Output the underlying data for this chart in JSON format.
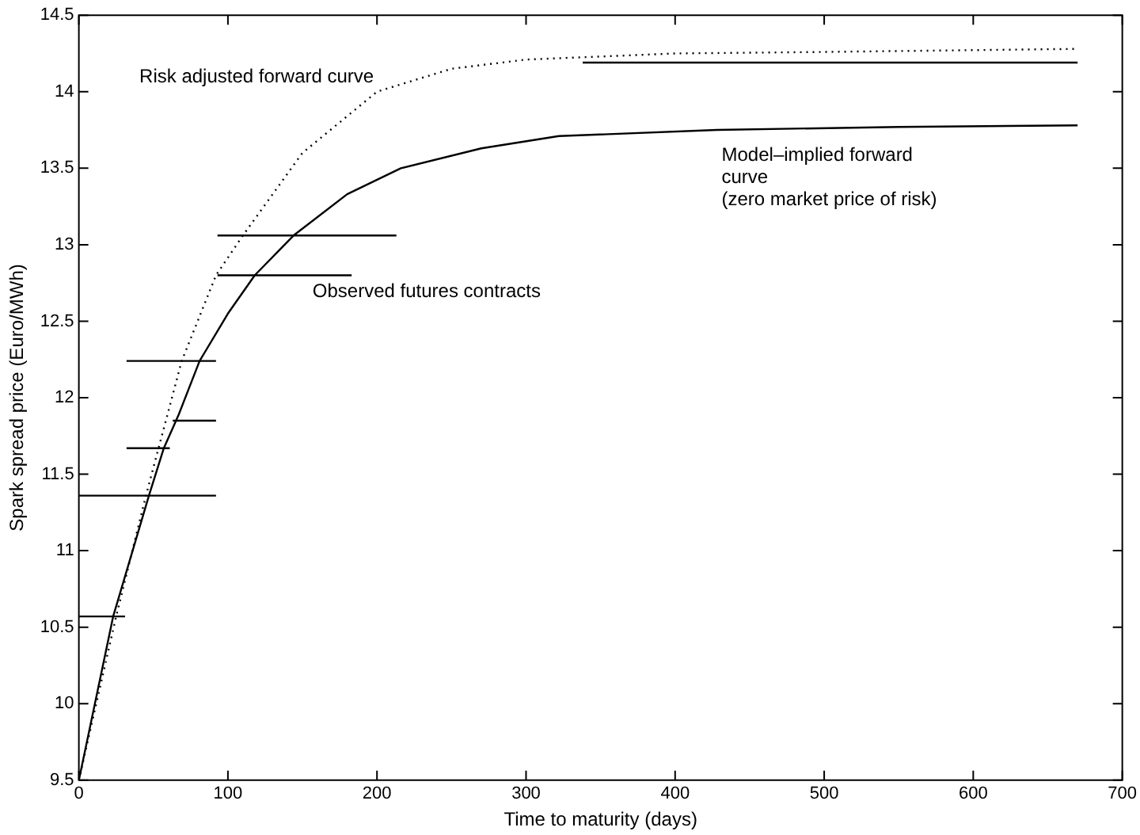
{
  "chart_data": {
    "type": "line",
    "xlabel": "Time to maturity (days)",
    "ylabel": "Spark spread price (Euro/MWh)",
    "xlim": [
      0,
      700
    ],
    "xticks": [
      0,
      100,
      200,
      300,
      400,
      500,
      600,
      700
    ],
    "ylim": [
      9.5,
      14.5
    ],
    "yticks": [
      9.5,
      10,
      10.5,
      11,
      11.5,
      12,
      12.5,
      13,
      13.5,
      14,
      14.5
    ],
    "grid": false,
    "legend": false,
    "marker": "none",
    "series": [
      {
        "color": "#000000",
        "line_style": "dotted",
        "x": [
          0,
          25,
          45,
          57,
          69,
          92,
          110,
          150,
          200,
          250,
          300,
          400,
          500,
          670
        ],
        "values": [
          9.5,
          10.57,
          11.36,
          11.8,
          12.24,
          12.8,
          13.06,
          13.6,
          14.0,
          14.15,
          14.21,
          14.25,
          14.26,
          14.28
        ]
      },
      {
        "color": "#000000",
        "line_style": "solid",
        "x": [
          0,
          23,
          47,
          57,
          67,
          81,
          100,
          118,
          144,
          180,
          216,
          270,
          322,
          428,
          550,
          670
        ],
        "values": [
          9.5,
          10.57,
          11.36,
          11.67,
          11.89,
          12.24,
          12.55,
          12.8,
          13.06,
          13.33,
          13.5,
          13.63,
          13.71,
          13.75,
          13.77,
          13.78
        ]
      },
      {
        "color": "#000000",
        "line_style": "solid",
        "x": [
          0,
          31
        ],
        "values": [
          10.57,
          10.57
        ]
      },
      {
        "color": "#000000",
        "line_style": "solid",
        "x": [
          0,
          92
        ],
        "values": [
          11.36,
          11.36
        ]
      },
      {
        "color": "#000000",
        "line_style": "solid",
        "x": [
          32,
          61
        ],
        "values": [
          11.67,
          11.67
        ]
      },
      {
        "color": "#000000",
        "line_style": "solid",
        "x": [
          63,
          92
        ],
        "values": [
          11.85,
          11.85
        ]
      },
      {
        "color": "#000000",
        "line_style": "solid",
        "x": [
          32,
          92
        ],
        "values": [
          12.24,
          12.24
        ]
      },
      {
        "color": "#000000",
        "line_style": "solid",
        "x": [
          93,
          183
        ],
        "values": [
          12.8,
          12.8
        ]
      },
      {
        "color": "#000000",
        "line_style": "solid",
        "x": [
          93,
          213
        ],
        "values": [
          13.06,
          13.06
        ]
      },
      {
        "color": "#000000",
        "line_style": "solid",
        "x": [
          338,
          670
        ],
        "values": [
          14.19,
          14.19
        ]
      }
    ],
    "annotations": [
      "Risk adjusted forward curve",
      "Observed futures contracts",
      "Model–implied forward\ncurve\n(zero market price of risk)"
    ]
  }
}
